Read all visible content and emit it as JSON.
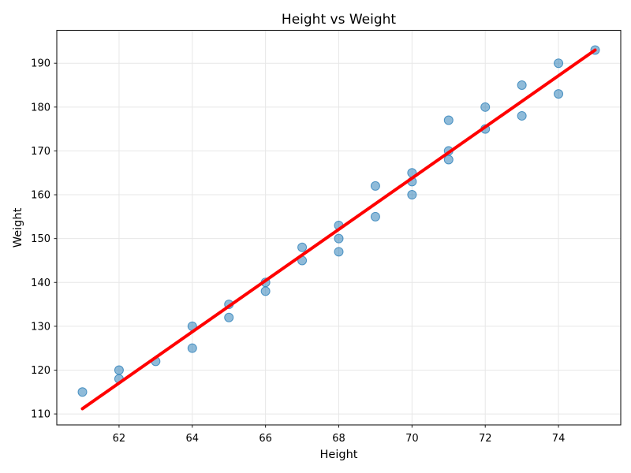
{
  "chart_data": {
    "type": "scatter",
    "title": "Height vs Weight",
    "xlabel": "Height",
    "ylabel": "Weight",
    "points": [
      [
        61,
        115
      ],
      [
        62,
        120
      ],
      [
        62,
        118
      ],
      [
        63,
        122
      ],
      [
        64,
        130
      ],
      [
        64,
        125
      ],
      [
        65,
        135
      ],
      [
        65,
        132
      ],
      [
        66,
        140
      ],
      [
        66,
        138
      ],
      [
        67,
        148
      ],
      [
        67,
        145
      ],
      [
        68,
        153
      ],
      [
        68,
        150
      ],
      [
        68,
        147
      ],
      [
        69,
        162
      ],
      [
        69,
        155
      ],
      [
        70,
        165
      ],
      [
        70,
        163
      ],
      [
        70,
        160
      ],
      [
        71,
        177
      ],
      [
        71,
        170
      ],
      [
        71,
        168
      ],
      [
        72,
        180
      ],
      [
        72,
        175
      ],
      [
        73,
        185
      ],
      [
        73,
        178
      ],
      [
        74,
        190
      ],
      [
        74,
        183
      ],
      [
        75,
        193
      ]
    ],
    "trend_line": {
      "x1": 61,
      "y1": 111.2,
      "x2": 75,
      "y2": 193.0
    },
    "xticks": [
      62,
      64,
      66,
      68,
      70,
      72,
      74
    ],
    "yticks": [
      110,
      120,
      130,
      140,
      150,
      160,
      170,
      180,
      190
    ],
    "xlim": [
      60.3,
      75.7
    ],
    "ylim": [
      107.5,
      197.5
    ],
    "grid": true,
    "legend": "none",
    "colors": {
      "marker": "#1f77b4",
      "marker_alpha": 0.5,
      "marker_edge_alpha": 0.72,
      "trend": "#ff0000",
      "grid": "#e7e7e7",
      "spine": "#1a1a1a",
      "text": "#000000",
      "background": "#ffffff"
    }
  }
}
